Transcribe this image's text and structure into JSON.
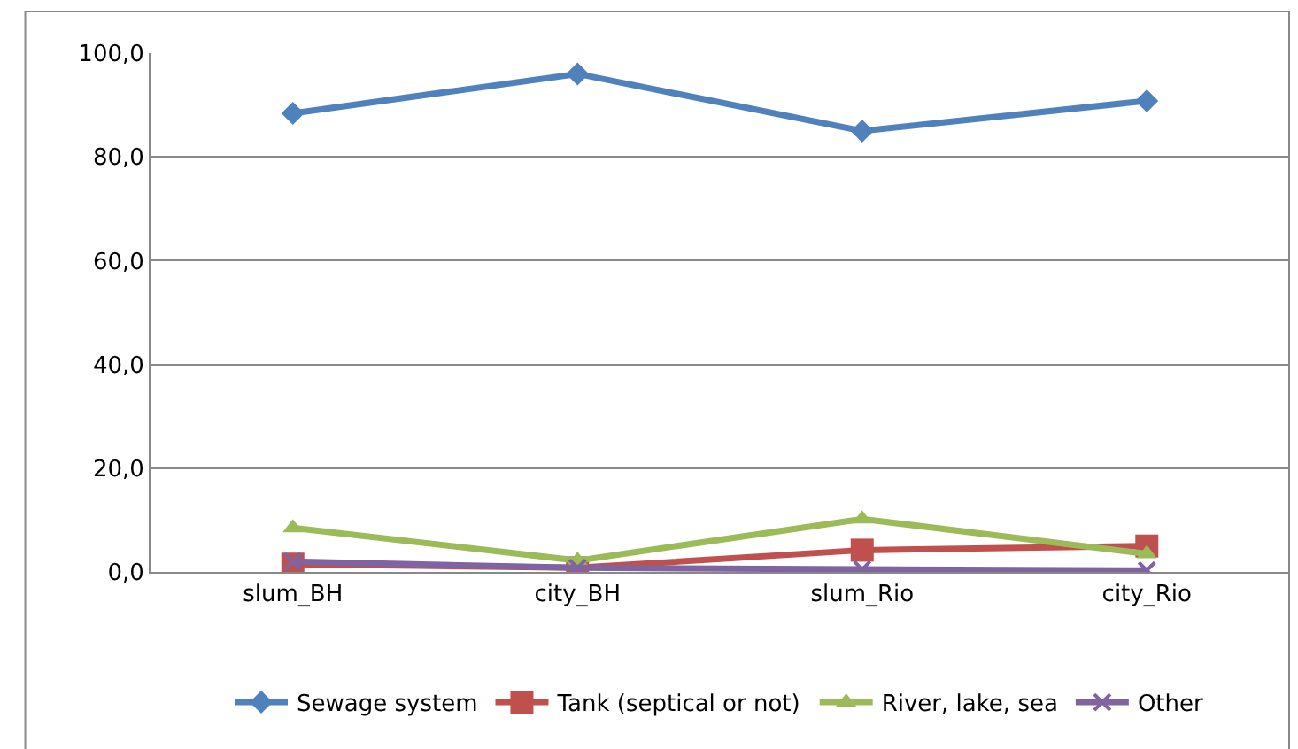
{
  "chart_data": {
    "type": "line",
    "categories": [
      "slum_BH",
      "city_BH",
      "slum_Rio",
      "city_Rio"
    ],
    "series": [
      {
        "name": "Sewage system",
        "color": "#4f81bd",
        "marker": "diamond",
        "values": [
          88.4,
          96.0,
          85.0,
          90.8
        ]
      },
      {
        "name": "Tank (septical or not)",
        "color": "#c0504d",
        "marker": "square",
        "values": [
          1.5,
          0.8,
          4.2,
          5.0
        ]
      },
      {
        "name": "River, lake, sea",
        "color": "#9bbb59",
        "marker": "triangle",
        "values": [
          8.5,
          2.2,
          10.2,
          3.5
        ]
      },
      {
        "name": "Other",
        "color": "#8064a2",
        "marker": "cross",
        "values": [
          2.0,
          0.8,
          0.5,
          0.3
        ]
      }
    ],
    "ylim": [
      0,
      100
    ],
    "yticks": [
      {
        "value": 0,
        "label": "0,0"
      },
      {
        "value": 20,
        "label": "20,0"
      },
      {
        "value": 40,
        "label": "40,0"
      },
      {
        "value": 60,
        "label": "60,0"
      },
      {
        "value": 80,
        "label": "80,0"
      },
      {
        "value": 100,
        "label": "100,0"
      }
    ],
    "grid": "y",
    "legend": "bottom",
    "line_style": "solid"
  }
}
